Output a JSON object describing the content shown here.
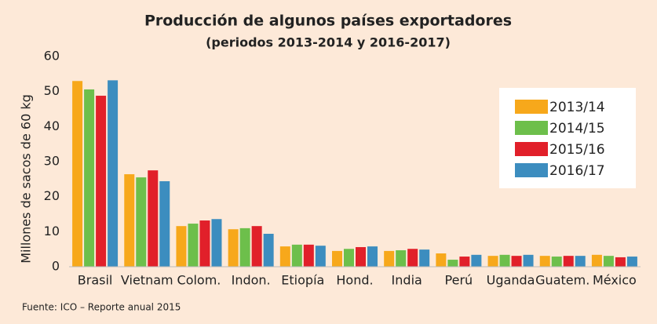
{
  "chart_data": {
    "type": "bar",
    "title": "Producción de algunos países exportadores",
    "subtitle": "(periodos 2013-2014 y 2016-2017)",
    "y_label": "Millones de sacos de 60 kg",
    "source": "Fuente: ICO – Reporte anual 2015",
    "categories": [
      "Brasil",
      "Vietnam",
      "Colom.",
      "Indon.",
      "Etiopía",
      "Hond.",
      "India",
      "Perú",
      "Uganda",
      "Guatem.",
      "México"
    ],
    "series": [
      {
        "name": "2013/14",
        "color": "#f7a81b",
        "values": [
          53,
          26.4,
          11.6,
          10.7,
          5.8,
          4.5,
          4.5,
          3.8,
          3.1,
          3.1,
          3.4
        ]
      },
      {
        "name": "2014/15",
        "color": "#6dbf4b",
        "values": [
          50.6,
          25.5,
          12.3,
          11,
          6.3,
          5.1,
          4.7,
          2,
          3.4,
          2.9,
          3.1
        ]
      },
      {
        "name": "2015/16",
        "color": "#e1202a",
        "values": [
          48.8,
          27.5,
          13.2,
          11.6,
          6.3,
          5.6,
          5.1,
          2.9,
          3.1,
          3.1,
          2.7
        ]
      },
      {
        "name": "2016/17",
        "color": "#3c8dbf",
        "values": [
          53.2,
          24.4,
          13.6,
          9.4,
          6,
          5.8,
          4.9,
          3.4,
          3.4,
          3.1,
          2.9
        ]
      }
    ],
    "ylim": [
      0,
      60
    ],
    "yticks": [
      0,
      10,
      20,
      30,
      40,
      50,
      60
    ],
    "grid": false,
    "legend": "upper right"
  }
}
